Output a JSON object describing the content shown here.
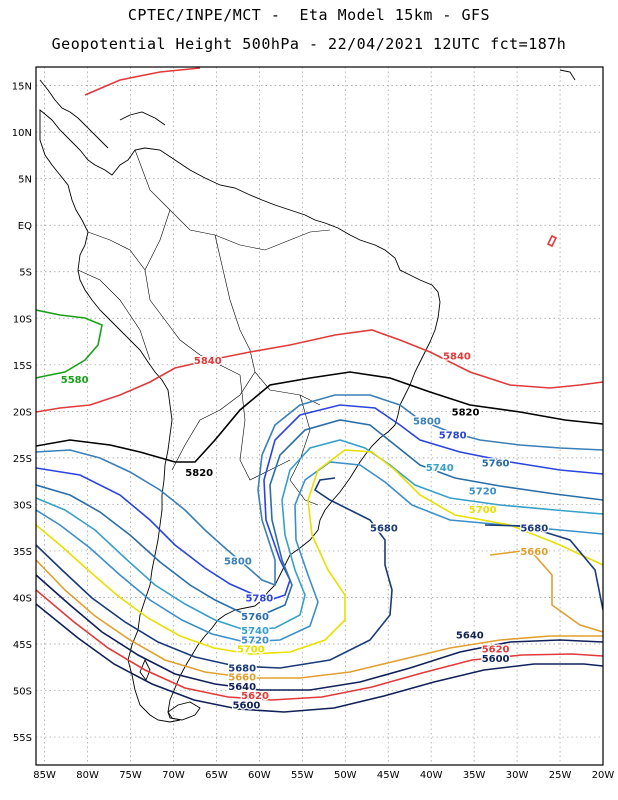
{
  "header": {
    "line1": "CPTEC/INPE/MCT -  Eta Model 15km - GFS",
    "line2": "Geopotential Height 500hPa - 22/04/2021 12UTC fct=187h"
  },
  "axes": {
    "lon_labels": [
      "85W",
      "80W",
      "75W",
      "70W",
      "65W",
      "60W",
      "55W",
      "50W",
      "45W",
      "40W",
      "35W",
      "30W",
      "25W",
      "20W"
    ],
    "lat_labels": [
      "15N",
      "10N",
      "5N",
      "EQ",
      "5S",
      "10S",
      "15S",
      "20S",
      "25S",
      "30S",
      "35S",
      "40S",
      "45S",
      "50S",
      "55S"
    ],
    "lon_range": [
      -86,
      -20
    ],
    "lat_range": [
      17,
      -58
    ]
  },
  "colors": {
    "5580": "#1aa01a",
    "5840": "#e03a3a",
    "5820": "#000000",
    "5800": "#3a7fb8",
    "5780": "#2a44dd",
    "5760": "#2a6ea8",
    "5740": "#36a0c8",
    "5720": "#3d8fc8",
    "5700": "#e8e000",
    "5680": "#1a3a78",
    "5660": "#e0a030",
    "5640": "#102058",
    "5620": "#e03a3a",
    "5600": "#102058"
  },
  "contour_labels": [
    {
      "text": "5580",
      "key": "5580",
      "lon": -81.5,
      "lat": -16.5
    },
    {
      "text": "5840",
      "key": "5840",
      "lon": -66.0,
      "lat": -14.5
    },
    {
      "text": "5840",
      "key": "5840",
      "lon": -37.0,
      "lat": -14.0
    },
    {
      "text": "5820",
      "key": "5820",
      "lon": -67.0,
      "lat": -26.5
    },
    {
      "text": "5820",
      "key": "5820",
      "lon": -36.0,
      "lat": -20.0
    },
    {
      "text": "5800",
      "key": "5800",
      "lon": -62.5,
      "lat": -36.0
    },
    {
      "text": "5800",
      "key": "5800",
      "lon": -40.5,
      "lat": -21.0
    },
    {
      "text": "5780",
      "key": "5780",
      "lon": -60.0,
      "lat": -40.0
    },
    {
      "text": "5780",
      "key": "5780",
      "lon": -37.5,
      "lat": -22.5
    },
    {
      "text": "5760",
      "key": "5760",
      "lon": -60.5,
      "lat": -42.0
    },
    {
      "text": "5760",
      "key": "5760",
      "lon": -32.5,
      "lat": -25.5
    },
    {
      "text": "5740",
      "key": "5740",
      "lon": -60.5,
      "lat": -43.5
    },
    {
      "text": "5740",
      "key": "5740",
      "lon": -39.0,
      "lat": -26.0
    },
    {
      "text": "5720",
      "key": "5720",
      "lon": -60.5,
      "lat": -44.5
    },
    {
      "text": "5720",
      "key": "5720",
      "lon": -34.0,
      "lat": -28.5
    },
    {
      "text": "5700",
      "key": "5700",
      "lon": -61.0,
      "lat": -45.5
    },
    {
      "text": "5700",
      "key": "5700",
      "lon": -34.0,
      "lat": -30.5
    },
    {
      "text": "5680",
      "key": "5680",
      "lon": -45.5,
      "lat": -32.5
    },
    {
      "text": "5680",
      "key": "5680",
      "lon": -62.0,
      "lat": -47.5
    },
    {
      "text": "5680",
      "key": "5680",
      "lon": -28.0,
      "lat": -32.5
    },
    {
      "text": "5660",
      "key": "5660",
      "lon": -62.0,
      "lat": -48.5
    },
    {
      "text": "5660",
      "key": "5660",
      "lon": -28.0,
      "lat": -35.0
    },
    {
      "text": "5640",
      "key": "5640",
      "lon": -62.0,
      "lat": -49.5
    },
    {
      "text": "5640",
      "key": "5640",
      "lon": -35.5,
      "lat": -44.0
    },
    {
      "text": "5620",
      "key": "5620",
      "lon": -60.5,
      "lat": -50.5
    },
    {
      "text": "5620",
      "key": "5620",
      "lon": -32.5,
      "lat": -45.5
    },
    {
      "text": "5600",
      "key": "5600",
      "lon": -61.5,
      "lat": -51.5
    },
    {
      "text": "5600",
      "key": "5600",
      "lon": -32.5,
      "lat": -46.5
    }
  ]
}
